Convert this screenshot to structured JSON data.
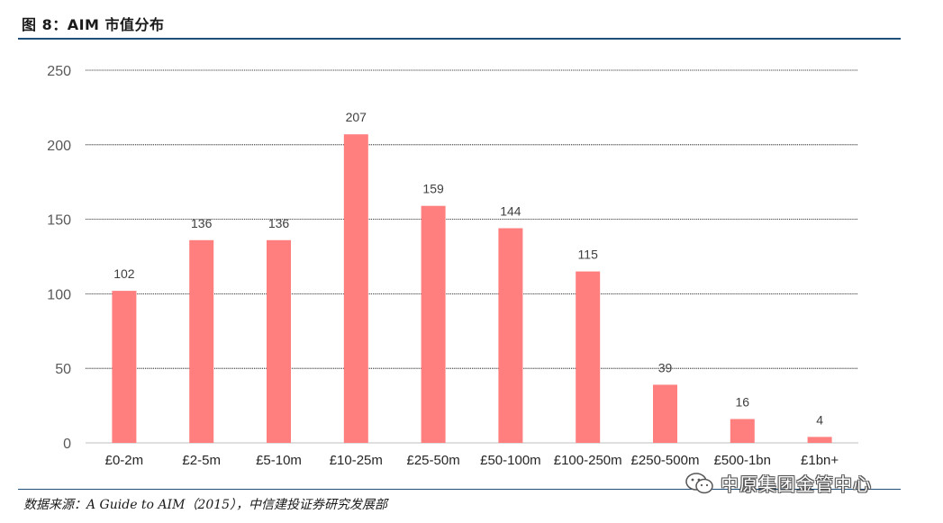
{
  "header": {
    "figure_title": "图 8：AIM 市值分布"
  },
  "chart_data": {
    "type": "bar",
    "categories": [
      "£0-2m",
      "£2-5m",
      "£5-10m",
      "£10-25m",
      "£25-50m",
      "£50-100m",
      "£100-250m",
      "£250-500m",
      "£500-1bn",
      "£1bn+"
    ],
    "values": [
      102,
      136,
      136,
      207,
      159,
      144,
      115,
      39,
      16,
      4
    ],
    "ylim": [
      0,
      250
    ],
    "yticks": [
      0,
      50,
      100,
      150,
      200,
      250
    ],
    "grid": true,
    "data_labels": true,
    "legend": "none",
    "bar_color": "#ff7f7f"
  },
  "footer": {
    "source": "数据来源：A Guide to AIM（2015），中信建投证券研究发展部",
    "watermark": "中原集团金管中心",
    "watermark_icon": "wechat-icon"
  },
  "colors": {
    "accent_rule": "#1f4e79",
    "gridline": "#000000",
    "tick_text": "#595959"
  }
}
